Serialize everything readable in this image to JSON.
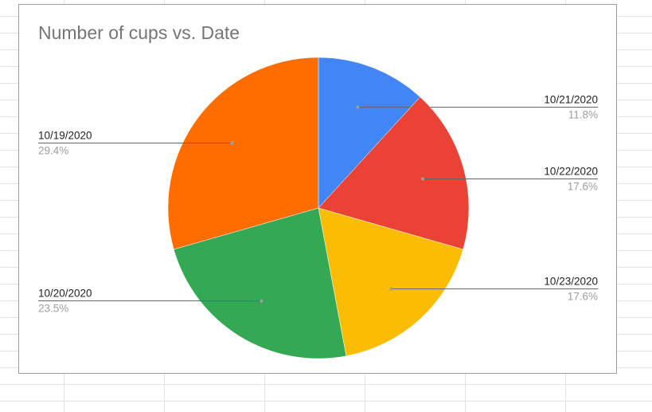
{
  "chart_data": {
    "type": "pie",
    "title": "Number of cups vs. Date",
    "start_angle_deg": 0,
    "direction": "clockwise",
    "slices": [
      {
        "label": "10/21/2020",
        "value": 11.8,
        "value_label": "11.8%",
        "color": "#4285f4",
        "label_side": "right"
      },
      {
        "label": "10/22/2020",
        "value": 17.6,
        "value_label": "17.6%",
        "color": "#ea4335",
        "label_side": "right"
      },
      {
        "label": "10/23/2020",
        "value": 17.6,
        "value_label": "17.6%",
        "color": "#fbbc04",
        "label_side": "right"
      },
      {
        "label": "10/20/2020",
        "value": 23.5,
        "value_label": "23.5%",
        "color": "#34a853",
        "label_side": "left"
      },
      {
        "label": "10/19/2020",
        "value": 29.4,
        "value_label": "29.4%",
        "color": "#ff6d01",
        "label_side": "left"
      }
    ],
    "legend": "labels"
  }
}
